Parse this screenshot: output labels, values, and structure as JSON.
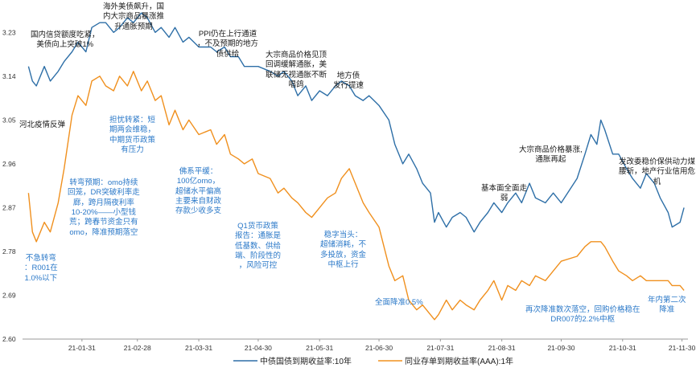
{
  "chart_data": {
    "type": "line",
    "x_ticks": [
      "21-01-31",
      "21-02-28",
      "21-03-31",
      "21-04-30",
      "21-05-31",
      "21-06-30",
      "21-07-31",
      "21-08-31",
      "21-09-30",
      "21-10-31",
      "21-11-30"
    ],
    "y_ticks": [
      "3.23",
      "3.14",
      "3.05",
      "2.96",
      "2.87",
      "2.78",
      "2.69",
      "2.60"
    ],
    "ylim": [
      2.6,
      3.28
    ],
    "series": [
      {
        "name": "中债国债到期收益率:10年",
        "color": "#2e6fa7",
        "points": [
          [
            "2021-01-04",
            3.16
          ],
          [
            "2021-01-06",
            3.13
          ],
          [
            "2021-01-08",
            3.12
          ],
          [
            "2021-01-12",
            3.16
          ],
          [
            "2021-01-15",
            3.13
          ],
          [
            "2021-01-19",
            3.15
          ],
          [
            "2021-01-22",
            3.17
          ],
          [
            "2021-01-26",
            3.19
          ],
          [
            "2021-01-29",
            3.21
          ],
          [
            "2021-02-02",
            3.19
          ],
          [
            "2021-02-05",
            3.24
          ],
          [
            "2021-02-09",
            3.25
          ],
          [
            "2021-02-12",
            3.25
          ],
          [
            "2021-02-16",
            3.23
          ],
          [
            "2021-02-19",
            3.24
          ],
          [
            "2021-02-23",
            3.26
          ],
          [
            "2021-02-26",
            3.25
          ],
          [
            "2021-03-02",
            3.27
          ],
          [
            "2021-03-05",
            3.26
          ],
          [
            "2021-03-09",
            3.23
          ],
          [
            "2021-03-12",
            3.24
          ],
          [
            "2021-03-16",
            3.22
          ],
          [
            "2021-03-19",
            3.24
          ],
          [
            "2021-03-23",
            3.21
          ],
          [
            "2021-03-26",
            3.22
          ],
          [
            "2021-03-31",
            3.2
          ],
          [
            "2021-04-06",
            3.2
          ],
          [
            "2021-04-09",
            3.19
          ],
          [
            "2021-04-13",
            3.2
          ],
          [
            "2021-04-16",
            3.18
          ],
          [
            "2021-04-20",
            3.18
          ],
          [
            "2021-04-23",
            3.16
          ],
          [
            "2021-04-27",
            3.16
          ],
          [
            "2021-04-30",
            3.16
          ],
          [
            "2021-05-06",
            3.15
          ],
          [
            "2021-05-10",
            3.14
          ],
          [
            "2021-05-13",
            3.15
          ],
          [
            "2021-05-17",
            3.13
          ],
          [
            "2021-05-20",
            3.1
          ],
          [
            "2021-05-24",
            3.12
          ],
          [
            "2021-05-27",
            3.09
          ],
          [
            "2021-05-31",
            3.11
          ],
          [
            "2021-06-04",
            3.1
          ],
          [
            "2021-06-08",
            3.12
          ],
          [
            "2021-06-11",
            3.13
          ],
          [
            "2021-06-15",
            3.12
          ],
          [
            "2021-06-18",
            3.1
          ],
          [
            "2021-06-22",
            3.09
          ],
          [
            "2021-06-25",
            3.1
          ],
          [
            "2021-06-30",
            3.08
          ],
          [
            "2021-07-05",
            3.05
          ],
          [
            "2021-07-08",
            3.0
          ],
          [
            "2021-07-12",
            2.96
          ],
          [
            "2021-07-15",
            2.98
          ],
          [
            "2021-07-19",
            2.95
          ],
          [
            "2021-07-22",
            2.92
          ],
          [
            "2021-07-26",
            2.9
          ],
          [
            "2021-07-28",
            2.84
          ],
          [
            "2021-07-30",
            2.86
          ],
          [
            "2021-08-03",
            2.83
          ],
          [
            "2021-08-06",
            2.85
          ],
          [
            "2021-08-10",
            2.86
          ],
          [
            "2021-08-13",
            2.85
          ],
          [
            "2021-08-17",
            2.82
          ],
          [
            "2021-08-20",
            2.84
          ],
          [
            "2021-08-24",
            2.86
          ],
          [
            "2021-08-27",
            2.88
          ],
          [
            "2021-08-31",
            2.86
          ],
          [
            "2021-09-03",
            2.88
          ],
          [
            "2021-09-07",
            2.9
          ],
          [
            "2021-09-10",
            2.88
          ],
          [
            "2021-09-14",
            2.92
          ],
          [
            "2021-09-17",
            2.89
          ],
          [
            "2021-09-22",
            2.88
          ],
          [
            "2021-09-26",
            2.9
          ],
          [
            "2021-09-30",
            2.88
          ],
          [
            "2021-10-08",
            2.93
          ],
          [
            "2021-10-12",
            2.98
          ],
          [
            "2021-10-15",
            3.02
          ],
          [
            "2021-10-18",
            3.0
          ],
          [
            "2021-10-20",
            3.05
          ],
          [
            "2021-10-22",
            3.03
          ],
          [
            "2021-10-26",
            2.98
          ],
          [
            "2021-10-29",
            2.98
          ],
          [
            "2021-11-02",
            2.95
          ],
          [
            "2021-11-05",
            2.93
          ],
          [
            "2021-11-09",
            2.91
          ],
          [
            "2021-11-12",
            2.94
          ],
          [
            "2021-11-16",
            2.92
          ],
          [
            "2021-11-19",
            2.89
          ],
          [
            "2021-11-23",
            2.86
          ],
          [
            "2021-11-25",
            2.83
          ],
          [
            "2021-11-29",
            2.84
          ],
          [
            "2021-12-01",
            2.87
          ]
        ]
      },
      {
        "name": "同业存单到期收益率(AAA):1年",
        "color": "#f0901e",
        "points": [
          [
            "2021-01-04",
            2.9
          ],
          [
            "2021-01-06",
            2.82
          ],
          [
            "2021-01-08",
            2.8
          ],
          [
            "2021-01-12",
            2.84
          ],
          [
            "2021-01-15",
            2.82
          ],
          [
            "2021-01-19",
            2.88
          ],
          [
            "2021-01-22",
            2.95
          ],
          [
            "2021-01-26",
            3.06
          ],
          [
            "2021-01-29",
            3.1
          ],
          [
            "2021-02-02",
            3.08
          ],
          [
            "2021-02-05",
            3.13
          ],
          [
            "2021-02-09",
            3.14
          ],
          [
            "2021-02-12",
            3.12
          ],
          [
            "2021-02-16",
            3.11
          ],
          [
            "2021-02-19",
            3.14
          ],
          [
            "2021-02-23",
            3.12
          ],
          [
            "2021-02-26",
            3.15
          ],
          [
            "2021-03-02",
            3.11
          ],
          [
            "2021-03-05",
            3.13
          ],
          [
            "2021-03-09",
            3.09
          ],
          [
            "2021-03-12",
            3.1
          ],
          [
            "2021-03-16",
            3.04
          ],
          [
            "2021-03-19",
            3.07
          ],
          [
            "2021-03-23",
            3.03
          ],
          [
            "2021-03-26",
            3.05
          ],
          [
            "2021-03-31",
            3.02
          ],
          [
            "2021-04-06",
            3.03
          ],
          [
            "2021-04-09",
            3.0
          ],
          [
            "2021-04-13",
            3.02
          ],
          [
            "2021-04-16",
            2.98
          ],
          [
            "2021-04-20",
            2.97
          ],
          [
            "2021-04-23",
            2.96
          ],
          [
            "2021-04-27",
            2.97
          ],
          [
            "2021-04-30",
            2.94
          ],
          [
            "2021-05-06",
            2.93
          ],
          [
            "2021-05-10",
            2.9
          ],
          [
            "2021-05-13",
            2.91
          ],
          [
            "2021-05-17",
            2.89
          ],
          [
            "2021-05-20",
            2.88
          ],
          [
            "2021-05-24",
            2.86
          ],
          [
            "2021-05-27",
            2.85
          ],
          [
            "2021-05-31",
            2.87
          ],
          [
            "2021-06-04",
            2.89
          ],
          [
            "2021-06-08",
            2.9
          ],
          [
            "2021-06-11",
            2.93
          ],
          [
            "2021-06-15",
            2.95
          ],
          [
            "2021-06-18",
            2.92
          ],
          [
            "2021-06-22",
            2.88
          ],
          [
            "2021-06-25",
            2.86
          ],
          [
            "2021-06-30",
            2.83
          ],
          [
            "2021-07-05",
            2.75
          ],
          [
            "2021-07-08",
            2.72
          ],
          [
            "2021-07-12",
            2.73
          ],
          [
            "2021-07-15",
            2.68
          ],
          [
            "2021-07-19",
            2.66
          ],
          [
            "2021-07-22",
            2.67
          ],
          [
            "2021-07-26",
            2.65
          ],
          [
            "2021-07-28",
            2.64
          ],
          [
            "2021-07-30",
            2.65
          ],
          [
            "2021-08-03",
            2.68
          ],
          [
            "2021-08-06",
            2.66
          ],
          [
            "2021-08-10",
            2.68
          ],
          [
            "2021-08-13",
            2.67
          ],
          [
            "2021-08-17",
            2.66
          ],
          [
            "2021-08-20",
            2.68
          ],
          [
            "2021-08-24",
            2.7
          ],
          [
            "2021-08-27",
            2.72
          ],
          [
            "2021-08-31",
            2.68
          ],
          [
            "2021-09-03",
            2.71
          ],
          [
            "2021-09-07",
            2.7
          ],
          [
            "2021-09-10",
            2.72
          ],
          [
            "2021-09-14",
            2.71
          ],
          [
            "2021-09-17",
            2.73
          ],
          [
            "2021-09-22",
            2.72
          ],
          [
            "2021-09-26",
            2.74
          ],
          [
            "2021-09-30",
            2.76
          ],
          [
            "2021-10-08",
            2.77
          ],
          [
            "2021-10-12",
            2.79
          ],
          [
            "2021-10-15",
            2.8
          ],
          [
            "2021-10-18",
            2.8
          ],
          [
            "2021-10-20",
            2.8
          ],
          [
            "2021-10-22",
            2.79
          ],
          [
            "2021-10-26",
            2.76
          ],
          [
            "2021-10-29",
            2.74
          ],
          [
            "2021-11-02",
            2.73
          ],
          [
            "2021-11-05",
            2.72
          ],
          [
            "2021-11-09",
            2.73
          ],
          [
            "2021-11-12",
            2.72
          ],
          [
            "2021-11-16",
            2.72
          ],
          [
            "2021-11-19",
            2.72
          ],
          [
            "2021-11-23",
            2.72
          ],
          [
            "2021-11-25",
            2.71
          ],
          [
            "2021-11-29",
            2.71
          ],
          [
            "2021-12-01",
            2.7
          ]
        ]
      }
    ],
    "legend_position": "bottom",
    "annotations": [
      {
        "id": "a1",
        "style": "black",
        "text": "国内信贷额度吃紧，\n美债向上突破1%"
      },
      {
        "id": "a2",
        "style": "black",
        "text": "海外美债飙升，国\n内大宗商品暴涨推\n升通胀预期"
      },
      {
        "id": "a3",
        "style": "black",
        "text": "PPI仍在上行通道\n，不及预期的地方\n债供给"
      },
      {
        "id": "a4",
        "style": "black",
        "text": "大宗商品价格见顶\n回调缓解通胀，美\n联储无视通胀不断\n唱鸽"
      },
      {
        "id": "a5",
        "style": "black",
        "text": "地方债\n发行提速"
      },
      {
        "id": "a6",
        "style": "black",
        "text": "河北疫情反弹"
      },
      {
        "id": "a7",
        "style": "black",
        "text": "基本面全面走\n弱"
      },
      {
        "id": "a8",
        "style": "black",
        "text": "大宗商品价格暴涨,\n通胀再起"
      },
      {
        "id": "a9",
        "style": "black",
        "text": "发改委稳价保供动力煤\n腰斩，地产行业信用危\n机"
      },
      {
        "id": "b1",
        "style": "blue",
        "text": "担忧转紧：短\n期两会维稳，\n中期货币政策\n有压力"
      },
      {
        "id": "b2",
        "style": "blue",
        "text": "转弯预期：omo持续\n回笼，DR突破利率走\n廊，跨月隔夜利率\n10-20%——小型钱\n荒；跨春节资金只有\nomo，降准预期落空"
      },
      {
        "id": "b3",
        "style": "blue",
        "text": "不急转弯\n：R001在\n1.0%以下"
      },
      {
        "id": "b4",
        "style": "blue",
        "text": "佛系平缓：\n100亿omo，\n超储水平偏高\n主要来自财政\n存款少收多支"
      },
      {
        "id": "b5",
        "style": "blue",
        "text": "Q1货币政策\n报告：通胀是\n低基数、供给\n端、阶段性的\n，风险可控"
      },
      {
        "id": "b6",
        "style": "blue",
        "text": "稳字当头：\n超储消耗，不\n多投放，资金\n中枢上行"
      },
      {
        "id": "b7",
        "style": "blue",
        "text": "全面降准0.5%"
      },
      {
        "id": "b8",
        "style": "blue",
        "text": "再次降准数次落空，回购价格稳在\nDR007的2.2%中枢"
      },
      {
        "id": "b9",
        "style": "blue",
        "text": "年内第二次\n降准"
      }
    ]
  }
}
